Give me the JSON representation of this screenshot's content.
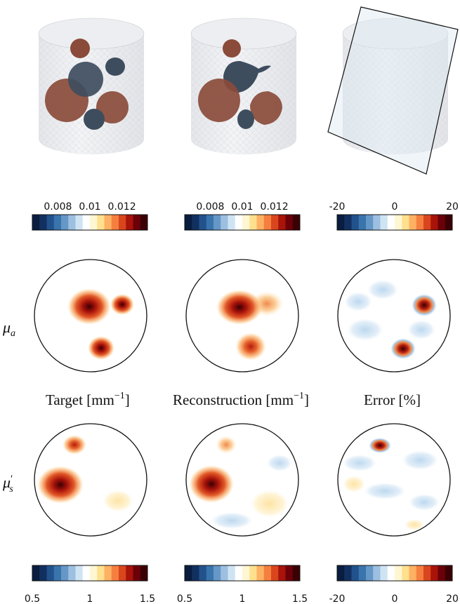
{
  "colorbar_colors": [
    "#081d3f",
    "#12305f",
    "#21528c",
    "#3a74ad",
    "#6597c7",
    "#9dbfe0",
    "#cfe4f3",
    "#ffffff",
    "#fff6d2",
    "#fee08e",
    "#fdb163",
    "#f57f3e",
    "#d9461d",
    "#a8130a",
    "#6b0008",
    "#3a0004"
  ],
  "top_colorbars": [
    {
      "ticks": [
        "0.008",
        "0.01",
        "0.012"
      ],
      "tick_values": [
        0.008,
        0.01,
        0.012
      ],
      "range": [
        0.0064,
        0.0136
      ]
    },
    {
      "ticks": [
        "0.008",
        "0.01",
        "0.012"
      ],
      "tick_values": [
        0.008,
        0.01,
        0.012
      ],
      "range": [
        0.0064,
        0.0136
      ]
    },
    {
      "ticks": [
        "-20",
        "0",
        "20"
      ],
      "tick_values": [
        -20,
        0,
        20
      ],
      "range": [
        -20,
        20
      ]
    }
  ],
  "bottom_colorbars": [
    {
      "ticks": [
        "0.5",
        "1",
        "1.5"
      ],
      "tick_values": [
        0.5,
        1,
        1.5
      ],
      "range": [
        0.5,
        1.5
      ]
    },
    {
      "ticks": [
        "0.5",
        "1",
        "1.5"
      ],
      "tick_values": [
        0.5,
        1,
        1.5
      ],
      "range": [
        0.5,
        1.5
      ]
    },
    {
      "ticks": [
        "-20",
        "0",
        "20"
      ],
      "tick_values": [
        -20,
        0,
        20
      ],
      "range": [
        -20,
        20
      ]
    }
  ],
  "column_titles": {
    "target": {
      "text": "Target [mm",
      "sup": "−1",
      "close": "]"
    },
    "reconstruction": {
      "text": "Reconstruction [mm",
      "sup": "−1",
      "close": "]"
    },
    "error": {
      "text": "Error [%]"
    }
  },
  "row_labels": {
    "absorption": {
      "symbol": "μ",
      "sub": "a"
    },
    "scattering": {
      "symbol": "μ",
      "prime": "′",
      "sub": "s"
    }
  },
  "blob_colors": {
    "absorbing_inclusion": "#8a4b3a",
    "scattering_inclusion": "#3e4d5e",
    "hot_dark": "#3a0004",
    "hot_mid": "#b31d0e",
    "hot_light": "#f57f3e",
    "warm_pale": "#fdd89a",
    "cool_pale": "#cfe4f3"
  }
}
